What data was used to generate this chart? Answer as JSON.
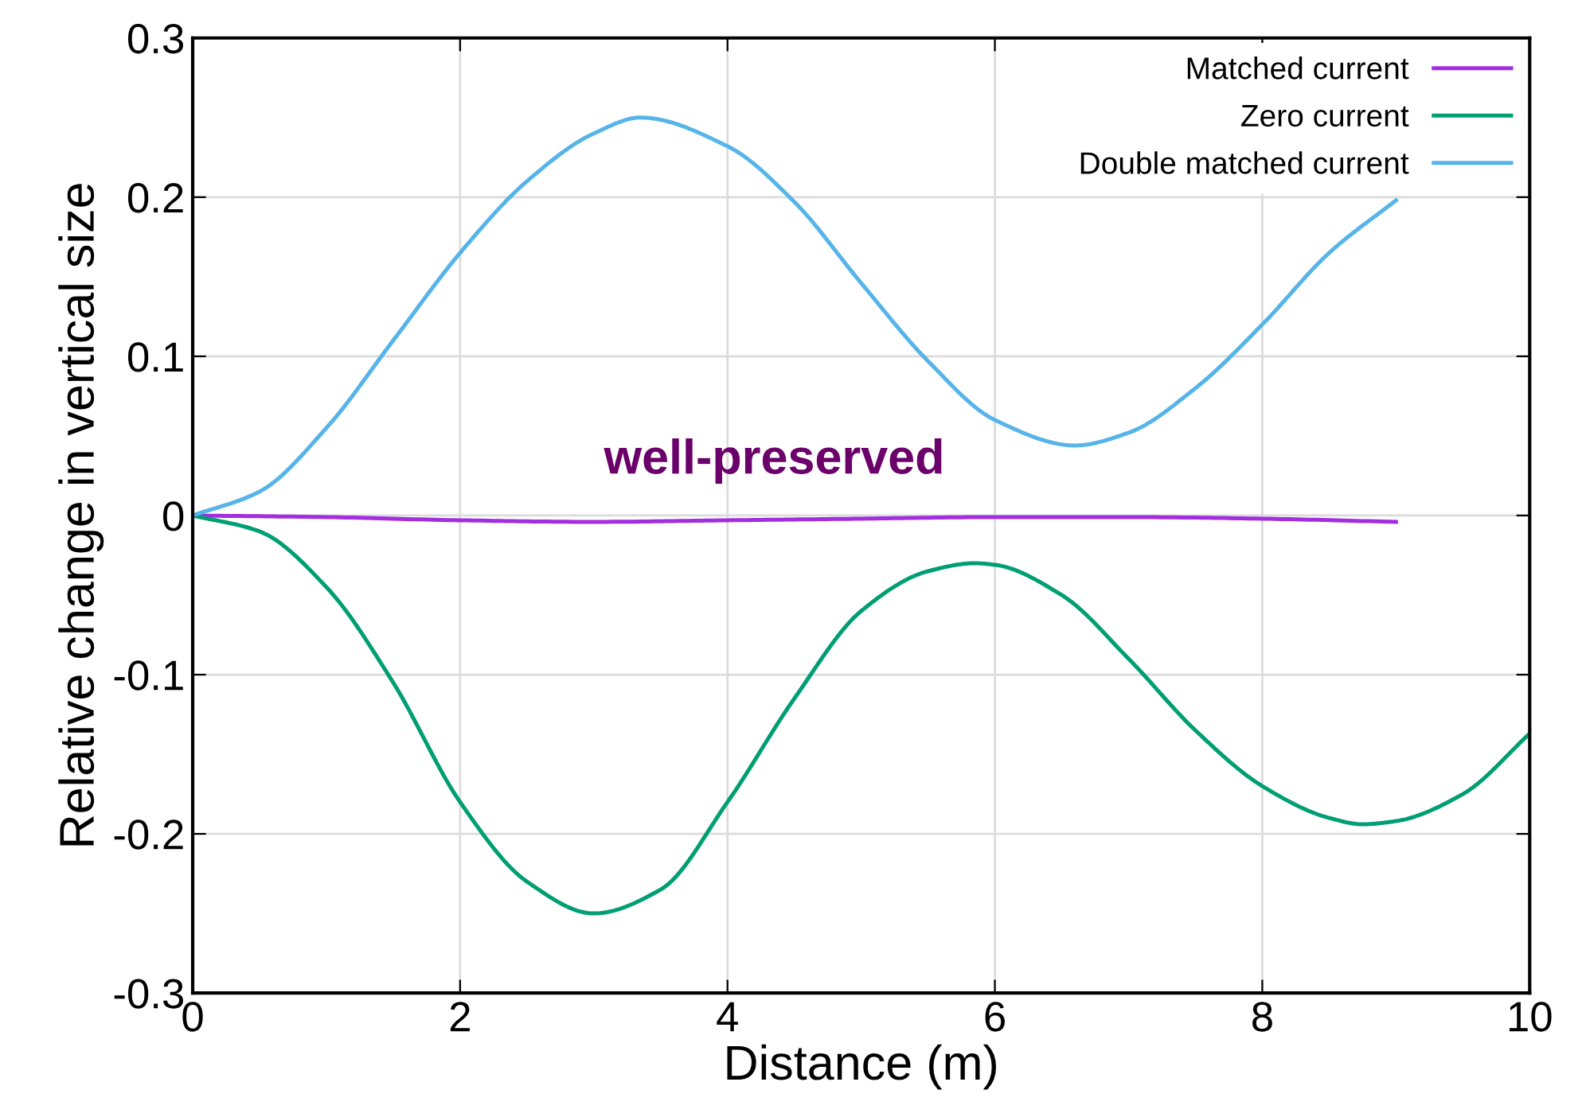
{
  "chart_data": {
    "type": "line",
    "xlabel": "Distance (m)",
    "ylabel": "Relative change in vertical size",
    "xlim": [
      0,
      10
    ],
    "xticks": [
      0,
      2,
      4,
      6,
      8,
      10
    ],
    "ylim": [
      -0.3,
      0.3
    ],
    "yticks": [
      -0.3,
      -0.2,
      -0.1,
      0,
      0.1,
      0.2,
      0.3
    ],
    "grid": true,
    "legend": "top right",
    "line_style": "solid",
    "marker": "none",
    "annotations": [
      "well-preserved"
    ],
    "series": [
      {
        "name": "Matched current",
        "color": "#a32ee0",
        "x": [
          0,
          1,
          2,
          3,
          4,
          5,
          6,
          7,
          8,
          9
        ],
        "values": [
          0,
          -0.001,
          -0.003,
          -0.004,
          -0.003,
          -0.002,
          -0.001,
          -0.001,
          -0.002,
          -0.004
        ]
      },
      {
        "name": "Zero current",
        "color": "#009e73",
        "x": [
          0,
          0.5,
          1,
          1.5,
          2,
          2.5,
          3,
          3.5,
          4,
          4.5,
          5,
          5.5,
          5.85,
          6,
          6.5,
          7,
          7.5,
          8,
          8.5,
          8.75,
          9,
          9.5,
          10
        ],
        "values": [
          0,
          -0.01,
          -0.045,
          -0.105,
          -0.18,
          -0.23,
          -0.25,
          -0.235,
          -0.18,
          -0.115,
          -0.06,
          -0.035,
          -0.03,
          -0.031,
          -0.05,
          -0.09,
          -0.135,
          -0.17,
          -0.19,
          -0.194,
          -0.192,
          -0.175,
          -0.137
        ]
      },
      {
        "name": "Double matched current",
        "color": "#56b4e9",
        "x": [
          0,
          0.5,
          1,
          1.5,
          2,
          2.5,
          3,
          3.35,
          4,
          4.5,
          5,
          5.5,
          6,
          6.6,
          7,
          7.5,
          8,
          8.5,
          9
        ],
        "values": [
          0,
          0.015,
          0.055,
          0.11,
          0.165,
          0.21,
          0.24,
          0.25,
          0.232,
          0.197,
          0.146,
          0.097,
          0.06,
          0.044,
          0.052,
          0.08,
          0.12,
          0.165,
          0.198
        ]
      }
    ]
  }
}
